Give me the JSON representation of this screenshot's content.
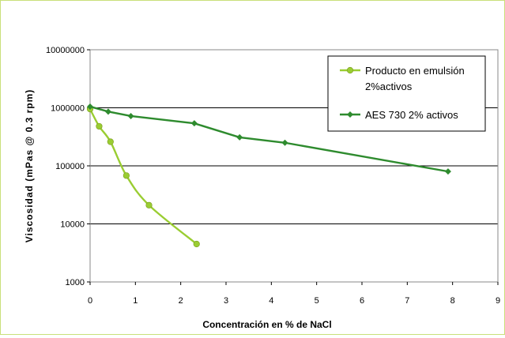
{
  "chart_data": {
    "type": "line",
    "title": "",
    "xlabel": "Concentración en % de NaCl",
    "ylabel": "Viscosidad (mPas @ 0.3 rpm)",
    "x_ticks": [
      "0",
      "1",
      "2",
      "3",
      "4",
      "5",
      "6",
      "7",
      "8",
      "9"
    ],
    "y_ticks": [
      "1000",
      "10000",
      "100000",
      "1000000",
      "10000000"
    ],
    "xlim": [
      0,
      9
    ],
    "ylim": [
      1000,
      10000000
    ],
    "y_scale": "log",
    "grid": "horizontal",
    "legend_position": "top-right",
    "series": [
      {
        "name_lines": [
          "Producto en emulsión",
          "2%activos"
        ],
        "color": "#9acd32",
        "marker": "circle",
        "x": [
          0.0,
          0.2,
          0.45,
          0.8,
          1.3,
          2.35
        ],
        "y": [
          950000,
          480000,
          260000,
          68000,
          21000,
          4500
        ]
      },
      {
        "name_lines": [
          "AES 730 2% activos"
        ],
        "color": "#2e8b2e",
        "marker": "diamond",
        "x": [
          0.0,
          0.4,
          0.9,
          2.3,
          3.3,
          4.3,
          7.9
        ],
        "y": [
          1050000,
          860000,
          720000,
          540000,
          310000,
          250000,
          80000
        ]
      }
    ]
  }
}
